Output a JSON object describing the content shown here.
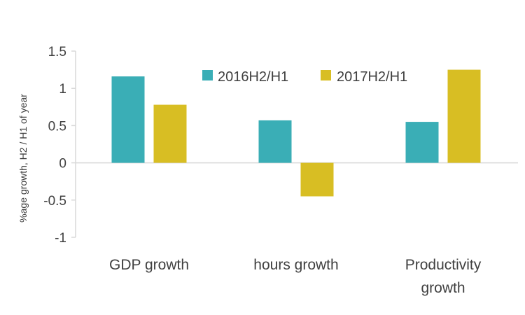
{
  "chart_data": {
    "type": "bar",
    "title": "",
    "xlabel": "",
    "ylabel": "%age growth, H2 / H1 of year",
    "categories": [
      [
        "GDP growth"
      ],
      [
        "hours growth"
      ],
      [
        "Productivity",
        "growth"
      ]
    ],
    "series": [
      {
        "name": "2016H2/H1",
        "color": "#3aaeb6",
        "values": [
          1.16,
          0.57,
          0.55
        ]
      },
      {
        "name": "2017H2/H1",
        "color": "#d8be23",
        "values": [
          0.78,
          -0.45,
          1.25
        ]
      }
    ],
    "ylim": [
      -1,
      1.5
    ],
    "yticks": [
      {
        "value": 1.5,
        "label": "1.5"
      },
      {
        "value": 1,
        "label": "1"
      },
      {
        "value": 0.5,
        "label": "0.5"
      },
      {
        "value": 0,
        "label": "0"
      },
      {
        "value": -0.5,
        "label": "-0.5"
      },
      {
        "value": -1,
        "label": "-1"
      }
    ],
    "grid": false,
    "legend_position": "top-center",
    "axis_color": "#d9d9d9"
  }
}
